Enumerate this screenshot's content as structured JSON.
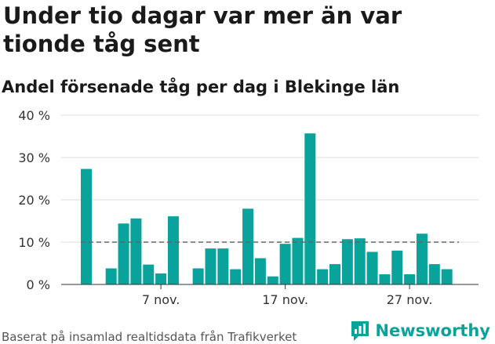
{
  "title": "Under tio dagar var mer än var tionde tåg sent",
  "subtitle": "Andel försenade tåg per dag i Blekinge län",
  "source": "Baserat på insamlad realtidsdata från Trafikverket",
  "brand": "Newsworthy",
  "colors": {
    "bar": "#0aa39b",
    "reference": "#666666",
    "grid": "#dddddd",
    "brand": "#0aa39b"
  },
  "icons": {
    "brand_logo": "bar-chart-speech-bubble-icon"
  },
  "chart_data": {
    "type": "bar",
    "x": [
      "1 nov.",
      "2 nov.",
      "3 nov.",
      "4 nov.",
      "5 nov.",
      "6 nov.",
      "7 nov.",
      "8 nov.",
      "9 nov.",
      "10 nov.",
      "11 nov.",
      "12 nov.",
      "13 nov.",
      "14 nov.",
      "15 nov.",
      "16 nov.",
      "17 nov.",
      "18 nov.",
      "19 nov.",
      "20 nov.",
      "21 nov.",
      "22 nov.",
      "23 nov.",
      "24 nov.",
      "25 nov.",
      "26 nov.",
      "27 nov.",
      "28 nov.",
      "29 nov.",
      "30 nov."
    ],
    "values": [
      27.3,
      null,
      3.8,
      14.4,
      15.6,
      4.7,
      2.6,
      16.1,
      null,
      3.8,
      8.5,
      8.5,
      3.6,
      17.9,
      6.2,
      1.9,
      9.6,
      11.0,
      35.7,
      3.6,
      4.8,
      10.7,
      10.9,
      7.7,
      2.4,
      8.0,
      2.4,
      12.0,
      4.8,
      3.6
    ],
    "ylim": [
      0,
      40
    ],
    "yticks": [
      0,
      10,
      20,
      30,
      40
    ],
    "ytick_labels": [
      "0 %",
      "10 %",
      "20 %",
      "30 %",
      "40 %"
    ],
    "xticks": [
      {
        "x": "7 nov.",
        "label": "7 nov."
      },
      {
        "x": "17 nov.",
        "label": "17 nov."
      },
      {
        "x": "27 nov.",
        "label": "27 nov."
      }
    ],
    "reference_line": {
      "value": 10,
      "style": "dashed"
    },
    "grid": true,
    "legend": false
  }
}
